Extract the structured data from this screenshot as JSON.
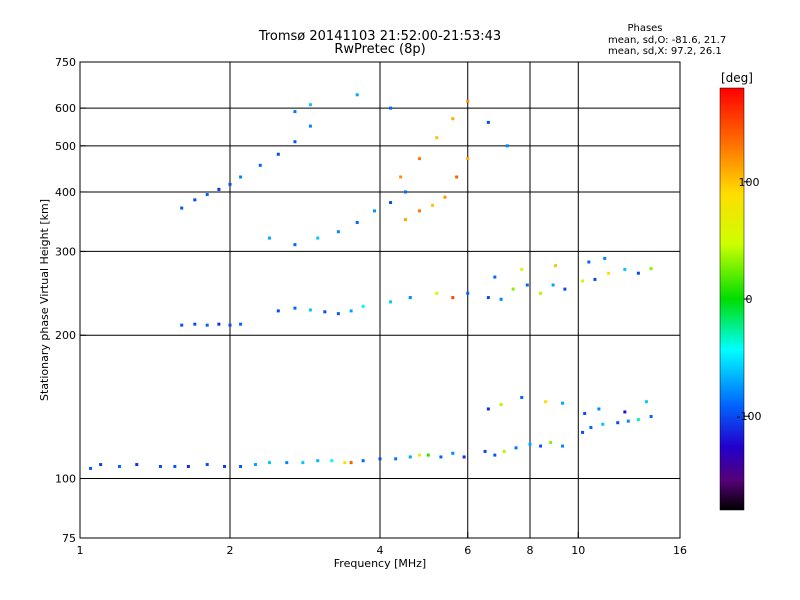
{
  "chart_data": {
    "type": "scatter",
    "title": "Tromsø 20141103 21:52:00-21:53:43",
    "subtitle": "RwPretec (8p)",
    "xlabel": "Frequency [MHz]",
    "ylabel": "Stationary phase Virtual Height [km]",
    "x_scale": "log",
    "y_scale": "log",
    "xlim": [
      1,
      16
    ],
    "ylim": [
      75,
      750
    ],
    "x_ticks": [
      1,
      2,
      4,
      6,
      8,
      10,
      16
    ],
    "y_ticks": [
      75,
      100,
      200,
      300,
      400,
      500,
      600,
      750
    ],
    "grid_x": [
      2,
      4,
      6,
      8,
      10
    ],
    "grid_y": [
      100,
      200,
      300,
      400,
      500,
      600
    ],
    "phase_box": {
      "header": "Phases",
      "line1": "mean, sd,O: -81.6, 21.7",
      "line2": "mean, sd,X:  97.2, 26.1"
    },
    "colorbar": {
      "label": "[deg]",
      "range": [
        -180,
        180
      ],
      "ticks": [
        {
          "value": 100,
          "label": "100"
        },
        {
          "value": 0,
          "label": "0"
        },
        {
          "value": -100,
          "label": "-100"
        }
      ]
    },
    "series": [
      {
        "values": [
          [
            1.05,
            105,
            -95
          ],
          [
            1.1,
            107,
            -105
          ],
          [
            1.2,
            106,
            -90
          ],
          [
            1.3,
            107,
            -110
          ],
          [
            1.45,
            106,
            -100
          ],
          [
            1.55,
            106,
            -95
          ],
          [
            1.65,
            106,
            -110
          ],
          [
            1.8,
            107,
            -100
          ],
          [
            1.95,
            106,
            -105
          ],
          [
            2.1,
            106,
            -95
          ],
          [
            2.25,
            107,
            -70
          ],
          [
            2.4,
            108,
            -60
          ],
          [
            2.6,
            108,
            -80
          ],
          [
            2.8,
            108,
            -60
          ],
          [
            3.0,
            109,
            -65
          ],
          [
            3.2,
            109,
            -40
          ],
          [
            3.4,
            108,
            80
          ],
          [
            3.5,
            108,
            140
          ],
          [
            3.7,
            109,
            -90
          ],
          [
            4.0,
            110,
            -100
          ],
          [
            4.3,
            110,
            -85
          ],
          [
            4.6,
            111,
            -70
          ],
          [
            4.8,
            112,
            60
          ],
          [
            5.0,
            112,
            10
          ],
          [
            5.3,
            111,
            -90
          ],
          [
            5.6,
            113,
            -80
          ],
          [
            5.9,
            111,
            -110
          ],
          [
            6.5,
            114,
            -100
          ],
          [
            6.8,
            112,
            -95
          ],
          [
            7.1,
            114,
            40
          ],
          [
            7.5,
            116,
            -85
          ],
          [
            8.0,
            118,
            -70
          ],
          [
            8.4,
            117,
            -95
          ],
          [
            8.8,
            119,
            30
          ],
          [
            9.3,
            117,
            -80
          ],
          [
            10.2,
            125,
            -100
          ],
          [
            10.6,
            128,
            -90
          ],
          [
            11.2,
            130,
            -60
          ],
          [
            12.0,
            131,
            -100
          ],
          [
            12.6,
            132,
            -80
          ],
          [
            13.2,
            133,
            -30
          ],
          [
            14.0,
            135,
            -90
          ],
          [
            6.6,
            140,
            -110
          ],
          [
            7.0,
            143,
            40
          ],
          [
            7.7,
            148,
            -90
          ],
          [
            8.6,
            145,
            90
          ],
          [
            9.3,
            144,
            -70
          ],
          [
            10.3,
            137,
            -100
          ],
          [
            11.0,
            140,
            -80
          ],
          [
            12.4,
            138,
            -120
          ],
          [
            13.7,
            145,
            -60
          ]
        ]
      },
      {
        "values": [
          [
            1.6,
            210,
            -95
          ],
          [
            1.7,
            211,
            -100
          ],
          [
            1.8,
            210,
            -90
          ],
          [
            1.9,
            211,
            -110
          ],
          [
            2.0,
            210,
            -100
          ],
          [
            2.1,
            211,
            -90
          ],
          [
            2.5,
            225,
            -100
          ],
          [
            2.7,
            228,
            -90
          ],
          [
            2.9,
            226,
            -60
          ],
          [
            3.1,
            224,
            -100
          ],
          [
            3.3,
            222,
            -95
          ],
          [
            3.5,
            225,
            -70
          ],
          [
            3.7,
            230,
            -40
          ],
          [
            4.2,
            235,
            -60
          ],
          [
            4.6,
            240,
            -80
          ],
          [
            5.2,
            245,
            60
          ],
          [
            5.6,
            240,
            150
          ],
          [
            6.0,
            245,
            -90
          ],
          [
            6.6,
            240,
            -100
          ],
          [
            7.0,
            238,
            -80
          ],
          [
            7.4,
            250,
            30
          ],
          [
            7.9,
            255,
            -90
          ],
          [
            8.4,
            245,
            40
          ],
          [
            8.9,
            255,
            -70
          ],
          [
            9.4,
            250,
            -100
          ],
          [
            10.2,
            260,
            60
          ],
          [
            10.8,
            262,
            -100
          ],
          [
            11.5,
            270,
            80
          ],
          [
            12.4,
            275,
            -60
          ],
          [
            13.2,
            270,
            -100
          ],
          [
            14.0,
            276,
            30
          ],
          [
            6.8,
            265,
            -90
          ],
          [
            7.7,
            275,
            60
          ],
          [
            9.0,
            280,
            100
          ],
          [
            10.5,
            285,
            -90
          ],
          [
            11.3,
            290,
            -80
          ]
        ]
      },
      {
        "values": [
          [
            1.6,
            370,
            -95
          ],
          [
            1.7,
            385,
            -100
          ],
          [
            1.8,
            395,
            -90
          ],
          [
            1.9,
            405,
            -110
          ],
          [
            2.0,
            415,
            -100
          ],
          [
            2.1,
            430,
            -80
          ],
          [
            2.3,
            455,
            -90
          ],
          [
            2.5,
            480,
            -100
          ],
          [
            2.7,
            510,
            -95
          ],
          [
            2.9,
            550,
            -80
          ],
          [
            2.7,
            590,
            -85
          ],
          [
            2.4,
            320,
            -70
          ],
          [
            2.7,
            310,
            -90
          ],
          [
            3.0,
            320,
            -60
          ],
          [
            3.3,
            330,
            -80
          ],
          [
            3.6,
            345,
            -90
          ],
          [
            3.9,
            365,
            -75
          ],
          [
            4.2,
            380,
            -100
          ],
          [
            4.5,
            400,
            -90
          ],
          [
            4.5,
            350,
            110
          ],
          [
            4.8,
            365,
            130
          ],
          [
            5.1,
            375,
            100
          ],
          [
            5.4,
            390,
            120
          ],
          [
            5.7,
            430,
            140
          ],
          [
            6.0,
            470,
            110
          ],
          [
            4.4,
            430,
            120
          ],
          [
            4.8,
            470,
            130
          ],
          [
            5.2,
            520,
            100
          ],
          [
            5.6,
            570,
            110
          ],
          [
            6.0,
            620,
            120
          ],
          [
            4.2,
            600,
            -90
          ],
          [
            6.6,
            560,
            -100
          ],
          [
            7.2,
            500,
            -80
          ],
          [
            3.6,
            640,
            -70
          ],
          [
            2.9,
            610,
            -60
          ]
        ]
      }
    ]
  }
}
